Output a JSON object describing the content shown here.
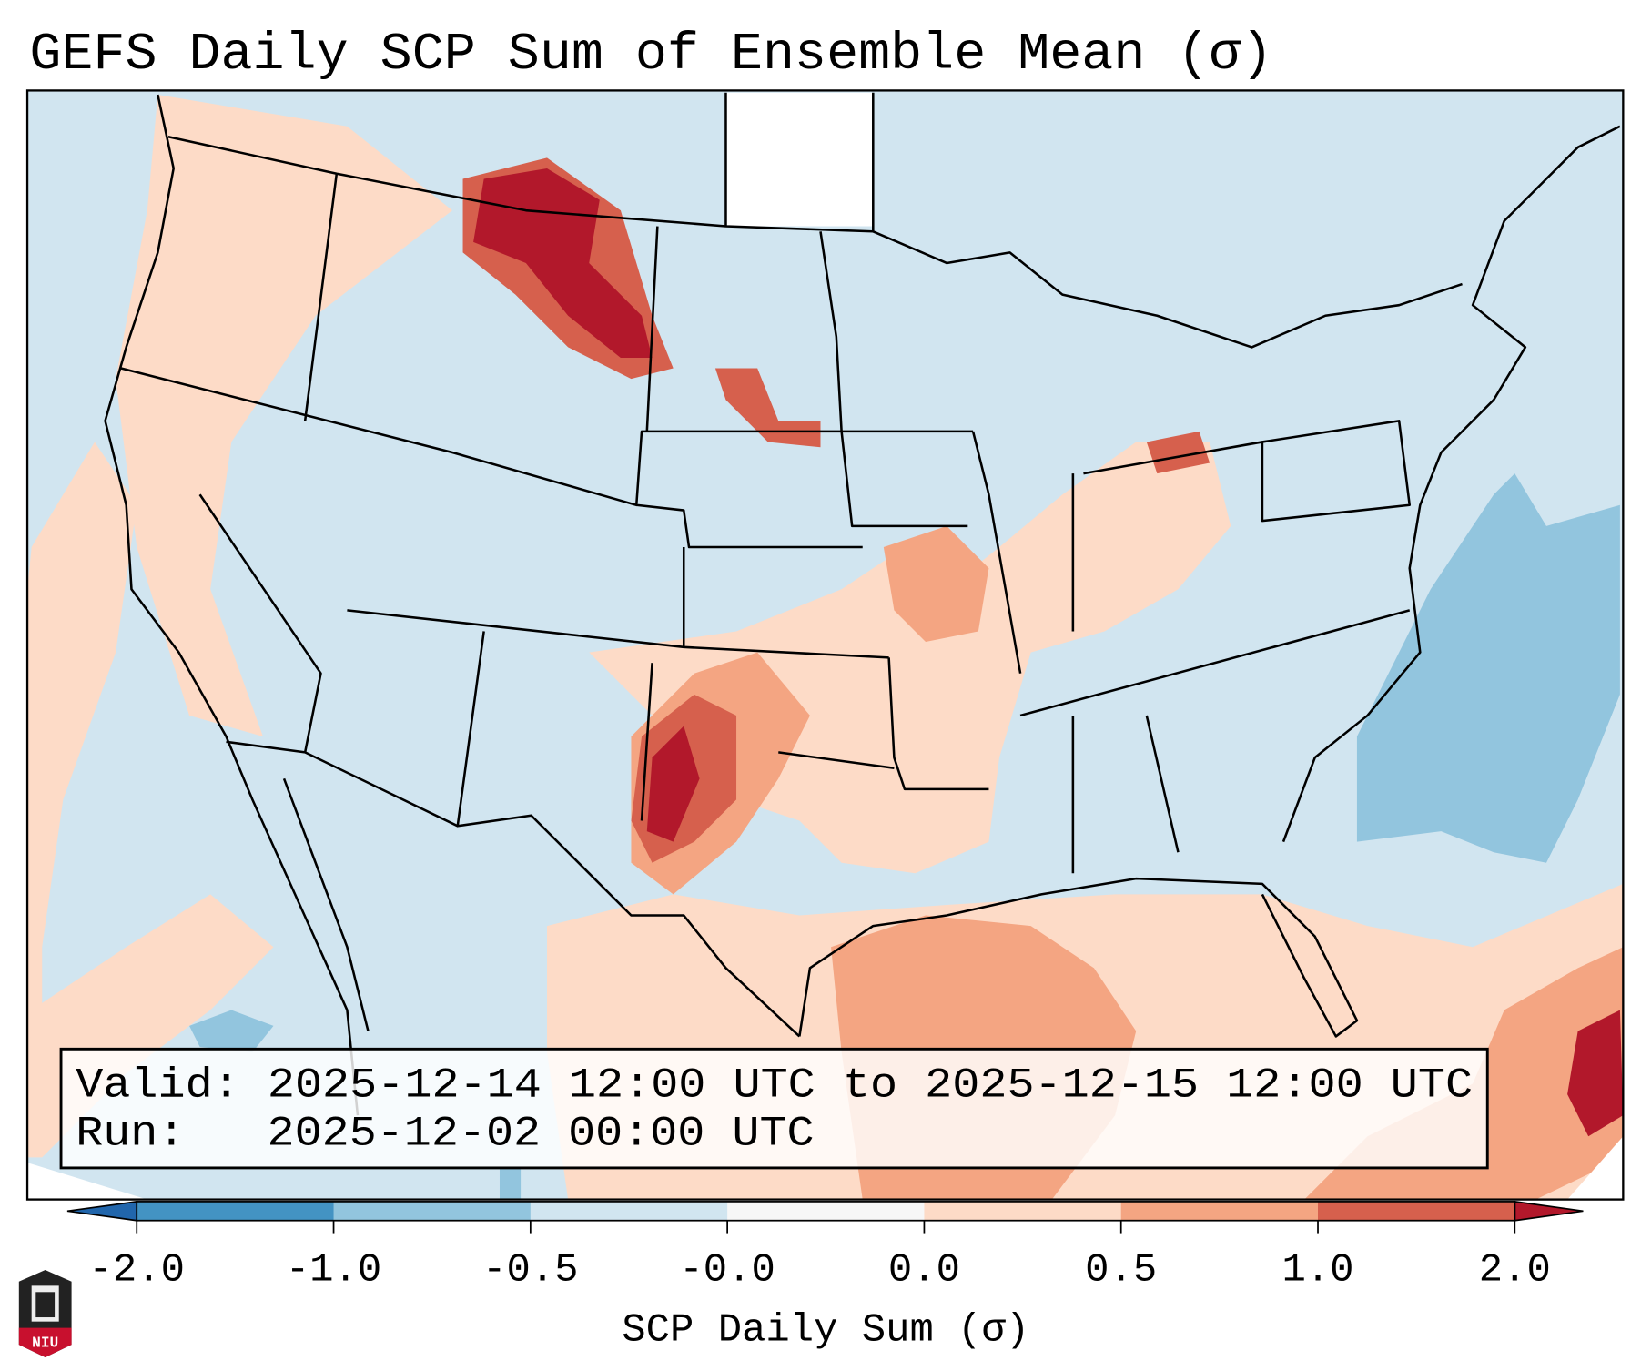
{
  "title": "GEFS Daily SCP Sum of Ensemble Mean (σ)",
  "info_box": {
    "valid_line": "Valid: 2025-12-14 12:00 UTC to 2025-12-15 12:00 UTC",
    "run_line": "Run:   2025-12-02 00:00 UTC"
  },
  "colorbar": {
    "label": "SCP Daily Sum (σ)",
    "ticks": [
      "-2.0",
      "-1.0",
      "-0.5",
      "-0.0",
      "0.0",
      "0.5",
      "1.0",
      "2.0"
    ],
    "colors": [
      "#4393c3",
      "#92c5de",
      "#d1e5f0",
      "#f7f7f7",
      "#fddbc7",
      "#f4a582",
      "#d6604d"
    ],
    "under_color": "#2166ac",
    "over_color": "#b2182b"
  },
  "logo": {
    "text": "NIU"
  },
  "chart_data": {
    "type": "heatmap",
    "title": "GEFS Daily SCP Sum of Ensemble Mean (σ)",
    "colorbar_label": "SCP Daily Sum (σ)",
    "levels": [
      -2.0,
      -1.0,
      -0.5,
      -0.0,
      0.0,
      0.5,
      1.0,
      2.0
    ],
    "extend": "both",
    "region": "Contiguous United States"
  }
}
